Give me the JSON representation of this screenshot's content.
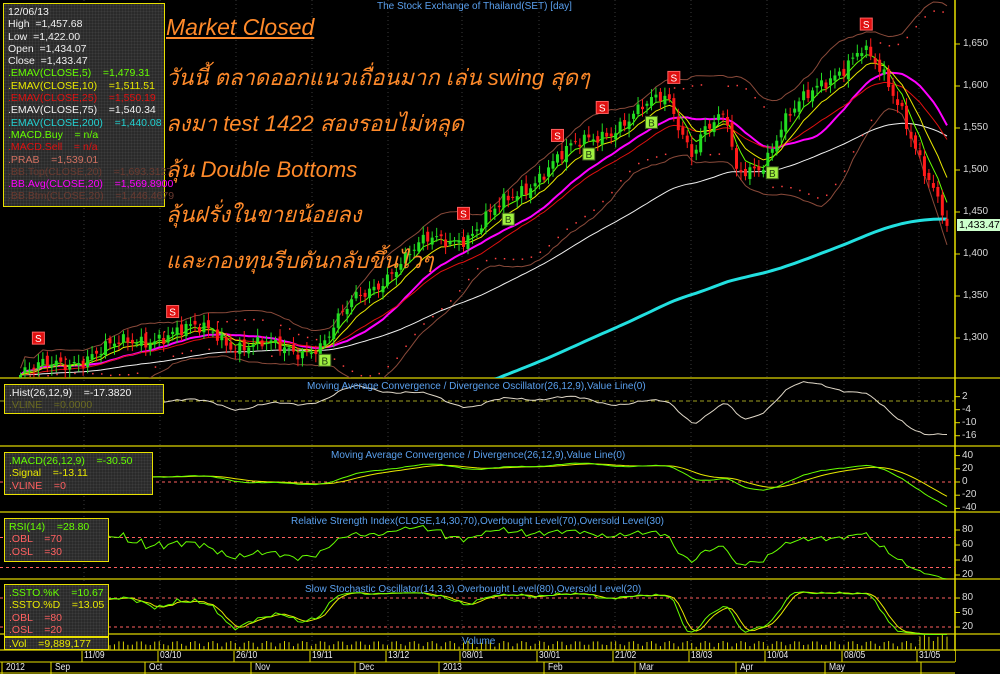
{
  "chart_data": {
    "type": "candlestick",
    "title": "The Stock Exchange of Thailand(SET) [day]",
    "price_axis": {
      "ticks": [
        "1,650",
        "1,600",
        "1,550",
        "1,500",
        "1,450",
        "1,400",
        "1,350",
        "1,300"
      ],
      "values": [
        1650,
        1600,
        1550,
        1500,
        1450,
        1400,
        1350,
        1300
      ]
    },
    "last_price_label": "1,433.47",
    "close_path": [
      {
        "date": "2012-08-22",
        "close": 1256
      },
      {
        "date": "2012-09-13",
        "close": 1280
      },
      {
        "date": "2012-10-05",
        "close": 1304
      },
      {
        "date": "2012-10-22",
        "close": 1310
      },
      {
        "date": "2012-10-29",
        "close": 1292
      },
      {
        "date": "2012-11-17",
        "close": 1286
      },
      {
        "date": "2012-11-26",
        "close": 1292
      },
      {
        "date": "2012-12-06",
        "close": 1345
      },
      {
        "date": "2012-12-18",
        "close": 1381
      },
      {
        "date": "2012-12-30",
        "close": 1417
      },
      {
        "date": "2013-01-12",
        "close": 1423
      },
      {
        "date": "2013-01-24",
        "close": 1464
      },
      {
        "date": "2013-02-06",
        "close": 1506
      },
      {
        "date": "2013-02-18",
        "close": 1536
      },
      {
        "date": "2013-03-03",
        "close": 1560
      },
      {
        "date": "2013-03-15",
        "close": 1589
      },
      {
        "date": "2013-03-23",
        "close": 1524
      },
      {
        "date": "2013-03-27",
        "close": 1548
      },
      {
        "date": "2013-04-03",
        "close": 1560
      },
      {
        "date": "2013-04-06",
        "close": 1494
      },
      {
        "date": "2013-04-15",
        "close": 1512
      },
      {
        "date": "2013-04-21",
        "close": 1554
      },
      {
        "date": "2013-05-04",
        "close": 1607
      },
      {
        "date": "2013-05-16",
        "close": 1643
      },
      {
        "date": "2013-05-22",
        "close": 1613
      },
      {
        "date": "2013-05-29",
        "close": 1571
      },
      {
        "date": "2013-06-04",
        "close": 1512
      },
      {
        "date": "2013-06-12",
        "close": 1433.47
      }
    ],
    "signals": [
      {
        "type": "S",
        "date": "2012-08-27"
      },
      {
        "type": "S",
        "date": "2012-10-09"
      },
      {
        "type": "S",
        "date": "2013-01-09"
      },
      {
        "type": "S",
        "date": "2013-02-09"
      },
      {
        "type": "S",
        "date": "2013-02-22"
      },
      {
        "type": "S",
        "date": "2013-03-17"
      },
      {
        "type": "S",
        "date": "2013-05-17"
      },
      {
        "type": "B",
        "date": "2012-11-27"
      },
      {
        "type": "B",
        "date": "2013-01-24"
      },
      {
        "type": "B",
        "date": "2013-02-18"
      },
      {
        "type": "B",
        "date": "2013-03-10"
      },
      {
        "type": "B",
        "date": "2013-04-17"
      }
    ],
    "panels": [
      {
        "title": "Moving Average Convergence / Divergence Oscillator(26,12,9),Value Line(0)",
        "ticks": [
          "2",
          "-4",
          "-10",
          "-16"
        ]
      },
      {
        "title": "Moving Average Convergence / Divergence(26,12,9),Value Line(0)",
        "ticks": [
          "40",
          "20",
          "0",
          "-20",
          "-40"
        ]
      },
      {
        "title": "Relative Strength Index(CLOSE,14,30,70),Overbought Level(70),Oversold Level(30)",
        "ticks": [
          "80",
          "60",
          "40",
          "20"
        ]
      },
      {
        "title": "Slow Stochastic Oscillator(14,3,3),Overbought Level(80),Oversold Level(20)",
        "ticks": [
          "80",
          "50",
          "20"
        ]
      },
      {
        "title": "Volume",
        "ticks": []
      }
    ],
    "date_axis": {
      "days": [
        "11/09",
        "03/10",
        "26/10",
        "19/11",
        "13/12",
        "08/01",
        "30/01",
        "21/02",
        "18/03",
        "10/04",
        "08/05",
        "31/05"
      ],
      "months": [
        "2012",
        "Sep",
        "Oct",
        "Nov",
        "Dec",
        "2013",
        "Feb",
        "Mar",
        "Apr",
        "May"
      ]
    },
    "colors": {
      "up": "#22dd22",
      "down": "#ff1a1a",
      "ema5": "#66ff00",
      "ema10": "#e8e800",
      "ema25": "#e01010",
      "ema75": "#f0f0f0",
      "ema200": "#22e0e0",
      "bb_avg": "#ff00ff",
      "bb_band": "#8a4a3a",
      "psar": "#ff4040",
      "axis": "#e8e000",
      "title": "#5aa0ee",
      "annotation": "#ff8a2a"
    }
  },
  "legend_main": [
    {
      "text": "12/06/13",
      "color": "#f0f0f0"
    },
    {
      "text": "High  =1,457.68",
      "color": "#f0f0f0"
    },
    {
      "text": "Low  =1,422.00",
      "color": "#f0f0f0"
    },
    {
      "text": "Open  =1,434.07",
      "color": "#f0f0f0"
    },
    {
      "text": "Close  =1,433.47",
      "color": "#f0f0f0"
    },
    {
      "text": ".EMAV(CLOSE,5)    =1,479.31",
      "color": "#66ff00"
    },
    {
      "text": ".EMAV(CLOSE,10)    =1,511.51",
      "color": "#e8e800"
    },
    {
      "text": ".EMAV(CLOSE,25)    =1,550.19",
      "color": "#e01010"
    },
    {
      "text": ".EMAV(CLOSE,75)    =1,540.34",
      "color": "#f0f0f0"
    },
    {
      "text": ".EMAV(CLOSE,200)    =1,440.08",
      "color": "#22d0d0"
    },
    {
      "text": ".MACD.Buy    = n/a",
      "color": "#66ff00"
    },
    {
      "text": ".MACD.Sell    = n/a",
      "color": "#e01010"
    },
    {
      "text": ".PRAB    =1,539.01",
      "color": "#d07060"
    },
    {
      "text": ".BB.Top(CLOSE,20)    =1,693.3127",
      "color": "#6a3a30"
    },
    {
      "text": ".BB.Avg(CLOSE,20)    =1,569.8900",
      "color": "#ff00ff"
    },
    {
      "text": ".BB.Btm(CLOSE,20)    =1,446.4679",
      "color": "#6a3a30"
    }
  ],
  "legend_hist": [
    {
      "text": ".Hist(26,12,9)    =-17.3820",
      "color": "#f0f0f0"
    },
    {
      "text": ".VLINE    =0.0000",
      "color": "#6a6a20"
    }
  ],
  "legend_macd": [
    {
      "text": ".MACD(26,12,9)    =-30.50",
      "color": "#66ff00"
    },
    {
      "text": ".Signal    =-13.11",
      "color": "#e8e800"
    },
    {
      "text": ".VLINE    =0",
      "color": "#ff6060"
    }
  ],
  "legend_rsi": [
    {
      "text": "RSI(14)    =28.80",
      "color": "#66ff00"
    },
    {
      "text": ".OBL    =70",
      "color": "#ff6060"
    },
    {
      "text": ".OSL    =30",
      "color": "#ff6060"
    }
  ],
  "legend_ssto": [
    {
      "text": ".SSTO.%K    =10.67",
      "color": "#66ff00"
    },
    {
      "text": ".SSTO.%D    =13.05",
      "color": "#e8e800"
    },
    {
      "text": ".OBL    =80",
      "color": "#ff6060"
    },
    {
      "text": ".OSL    =20",
      "color": "#ff6060"
    }
  ],
  "legend_vol": {
    "text": ".Vol    =9,889,177",
    "color": "#e8e800"
  },
  "annotation": {
    "heading": "Market Closed",
    "lines": [
      "วันนี้ ตลาดออกแนวเถื่อนมาก เล่น swing สุดๆ",
      "ลงมา test 1422  สองรอบไม่หลุด",
      "ลุ้น Double Bottoms",
      "ลุ้นฝรั่งในขายน้อยลง",
      "และกองทุนรีบดันกลับขึ้นไวๆ"
    ]
  }
}
